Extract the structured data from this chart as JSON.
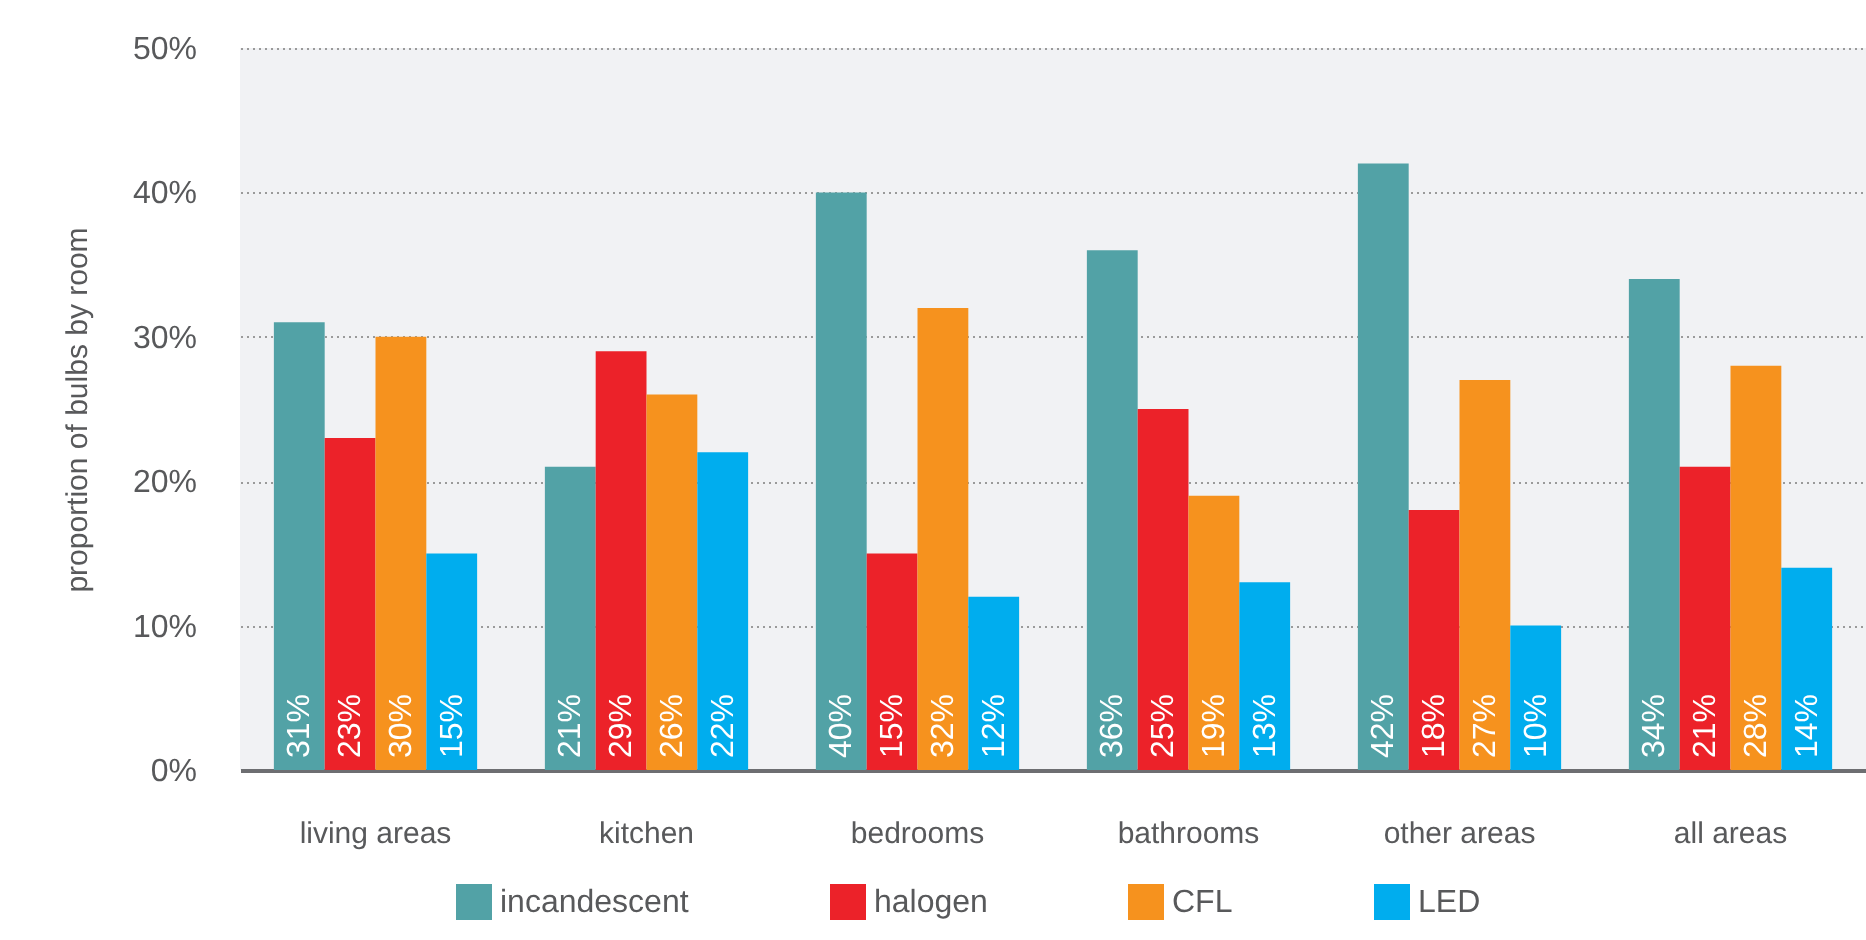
{
  "chart_data": {
    "type": "bar",
    "ylabel": "proportion of bulbs by room",
    "categories": [
      "living areas",
      "kitchen",
      "bedrooms",
      "bathrooms",
      "other areas",
      "all areas"
    ],
    "series": [
      {
        "name": "incandescent",
        "color": "#52a2a6",
        "values": [
          31,
          21,
          40,
          36,
          42,
          34
        ],
        "value_labels": [
          "31%",
          "21%",
          "40%",
          "36%",
          "42%",
          "34%"
        ]
      },
      {
        "name": "halogen",
        "color": "#ec2229",
        "values": [
          23,
          29,
          15,
          25,
          18,
          21
        ],
        "value_labels": [
          "23%",
          "29%",
          "15%",
          "25%",
          "18%",
          "21%"
        ]
      },
      {
        "name": "CFL",
        "color": "#f6921e",
        "values": [
          30,
          26,
          32,
          19,
          27,
          28
        ],
        "value_labels": [
          "30%",
          "26%",
          "32%",
          "19%",
          "27%",
          "28%"
        ]
      },
      {
        "name": "LED",
        "color": "#00adee",
        "values": [
          15,
          22,
          12,
          13,
          10,
          14
        ],
        "value_labels": [
          "15%",
          "22%",
          "12%",
          "13%",
          "10%",
          "14%"
        ]
      }
    ],
    "ylim": [
      0,
      50
    ],
    "yticks": [
      {
        "value": 0,
        "label": "0%"
      },
      {
        "value": 10,
        "label": "10%"
      },
      {
        "value": 20,
        "label": "20%"
      },
      {
        "value": 30,
        "label": "30%"
      },
      {
        "value": 40,
        "label": "40%"
      },
      {
        "value": 50,
        "label": "50%"
      }
    ],
    "grid": "y",
    "legend": "bottom"
  }
}
